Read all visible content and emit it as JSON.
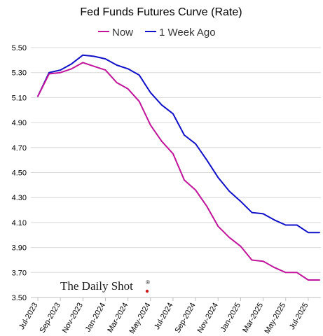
{
  "chart_data": {
    "type": "line",
    "title": "Fed Funds Futures Curve (Rate)",
    "xlabel": "",
    "ylabel": "",
    "ylim": [
      3.5,
      5.5
    ],
    "y_ticks": [
      "3.50",
      "3.70",
      "3.90",
      "4.10",
      "4.30",
      "4.50",
      "4.70",
      "4.90",
      "5.10",
      "5.30",
      "5.50"
    ],
    "x": [
      "Jul-2023",
      "Aug-2023",
      "Sep-2023",
      "Oct-2023",
      "Nov-2023",
      "Dec-2023",
      "Jan-2024",
      "Feb-2024",
      "Mar-2024",
      "Apr-2024",
      "May-2024",
      "Jun-2024",
      "Jul-2024",
      "Aug-2024",
      "Sep-2024",
      "Oct-2024",
      "Nov-2024",
      "Dec-2024",
      "Jan-2025",
      "Feb-2025",
      "Mar-2025",
      "Apr-2025",
      "May-2025",
      "Jun-2025",
      "Jul-2025",
      "Aug-2025"
    ],
    "x_tick_labels": [
      "Jul-2023",
      "Sep-2023",
      "Nov-2023",
      "Jan-2024",
      "Mar-2024",
      "May-2024",
      "Jul-2024",
      "Sep-2024",
      "Nov-2024",
      "Jan-2025",
      "Mar-2025",
      "May-2025",
      "Jul-2025"
    ],
    "series": [
      {
        "name": "Now",
        "color": "#c0149a",
        "values": [
          5.11,
          5.29,
          5.3,
          5.33,
          5.38,
          5.35,
          5.32,
          5.22,
          5.17,
          5.07,
          4.88,
          4.75,
          4.65,
          4.44,
          4.36,
          4.23,
          4.07,
          3.98,
          3.91,
          3.8,
          3.79,
          3.74,
          3.7,
          3.7,
          3.64,
          3.64
        ]
      },
      {
        "name": "1 Week Ago",
        "color": "#1010c8",
        "values": [
          5.11,
          5.3,
          5.32,
          5.37,
          5.44,
          5.43,
          5.41,
          5.36,
          5.33,
          5.28,
          5.14,
          5.04,
          4.97,
          4.8,
          4.73,
          4.6,
          4.46,
          4.35,
          4.27,
          4.18,
          4.17,
          4.12,
          4.08,
          4.08,
          4.02,
          4.02
        ]
      }
    ],
    "grid": true,
    "legend": "top-center"
  },
  "watermark": {
    "text": "The Daily Shot",
    "mark": "®",
    "dot_color": "#cc1f1f"
  }
}
